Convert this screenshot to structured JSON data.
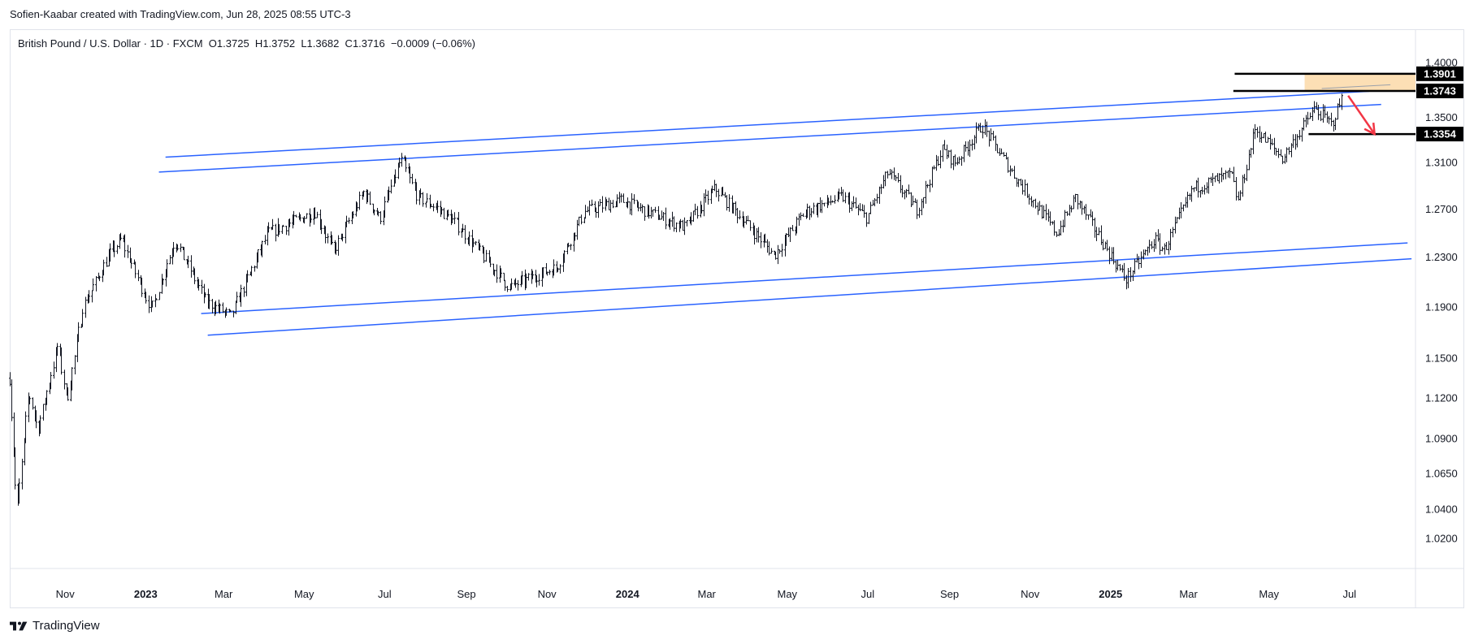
{
  "header": {
    "attribution": "Sofien-Kaabar created with TradingView.com, Jun 28, 2025 08:55 UTC-3"
  },
  "legend": {
    "symbol": "British Pound / U.S. Dollar · 1D · FXCM",
    "open_label": "O",
    "open": "1.3725",
    "high_label": "H",
    "high": "1.3752",
    "low_label": "L",
    "low": "1.3682",
    "close_label": "C",
    "close": "1.3716",
    "change": "−0.0009 (−0.06%)"
  },
  "footer": {
    "brand": "TradingView",
    "logo_icon": "tradingview-logo-icon"
  },
  "colors": {
    "candle": "#131722",
    "channel": "#2962ff",
    "arrow": "#f23645",
    "zone": "#fcd9a8",
    "price_box": "#000000",
    "grid_border": "#e0e3eb"
  },
  "chart_data": {
    "type": "candlestick",
    "title": "British Pound / U.S. Dollar · 1D · FXCM",
    "x_ticks": [
      {
        "label": "Nov",
        "date": "2022-11-01"
      },
      {
        "label": "2023",
        "date": "2023-01-01",
        "year": true
      },
      {
        "label": "Mar",
        "date": "2023-03-01"
      },
      {
        "label": "May",
        "date": "2023-05-01"
      },
      {
        "label": "Jul",
        "date": "2023-07-01"
      },
      {
        "label": "Sep",
        "date": "2023-09-01"
      },
      {
        "label": "Nov",
        "date": "2023-11-01"
      },
      {
        "label": "2024",
        "date": "2024-01-01",
        "year": true
      },
      {
        "label": "Mar",
        "date": "2024-03-01"
      },
      {
        "label": "May",
        "date": "2024-05-01"
      },
      {
        "label": "Jul",
        "date": "2024-07-01"
      },
      {
        "label": "Sep",
        "date": "2024-09-01"
      },
      {
        "label": "Nov",
        "date": "2024-11-01"
      },
      {
        "label": "2025",
        "date": "2025-01-01",
        "year": true
      },
      {
        "label": "Mar",
        "date": "2025-03-01"
      },
      {
        "label": "May",
        "date": "2025-05-01"
      },
      {
        "label": "Jul",
        "date": "2025-07-01"
      }
    ],
    "y_ticks": [
      "1.4000",
      "1.3500",
      "1.3100",
      "1.2700",
      "1.2300",
      "1.1900",
      "1.1500",
      "1.1200",
      "1.0900",
      "1.0650",
      "1.0400",
      "1.0200"
    ],
    "y_scale": "log",
    "x_range": [
      "2022-09-20",
      "2025-08-20"
    ],
    "y_range": [
      1.0,
      1.415
    ],
    "price_path": [
      [
        "2022-09-20",
        1.135
      ],
      [
        "2022-09-26",
        1.038
      ],
      [
        "2022-10-05",
        1.125
      ],
      [
        "2022-10-12",
        1.097
      ],
      [
        "2022-10-27",
        1.16
      ],
      [
        "2022-11-03",
        1.118
      ],
      [
        "2022-11-15",
        1.19
      ],
      [
        "2022-12-05",
        1.232
      ],
      [
        "2022-12-14",
        1.245
      ],
      [
        "2023-01-06",
        1.188
      ],
      [
        "2023-01-24",
        1.245
      ],
      [
        "2023-02-16",
        1.195
      ],
      [
        "2023-03-07",
        1.183
      ],
      [
        "2023-04-04",
        1.25
      ],
      [
        "2023-05-10",
        1.268
      ],
      [
        "2023-05-24",
        1.235
      ],
      [
        "2023-06-16",
        1.285
      ],
      [
        "2023-06-28",
        1.262
      ],
      [
        "2023-07-14",
        1.313
      ],
      [
        "2023-07-27",
        1.28
      ],
      [
        "2023-08-10",
        1.272
      ],
      [
        "2023-08-25",
        1.258
      ],
      [
        "2023-10-04",
        1.206
      ],
      [
        "2023-10-24",
        1.215
      ],
      [
        "2023-11-09",
        1.222
      ],
      [
        "2023-11-30",
        1.268
      ],
      [
        "2023-12-28",
        1.278
      ],
      [
        "2024-01-17",
        1.268
      ],
      [
        "2024-02-14",
        1.255
      ],
      [
        "2024-03-08",
        1.288
      ],
      [
        "2024-04-22",
        1.232
      ],
      [
        "2024-05-15",
        1.268
      ],
      [
        "2024-06-12",
        1.281
      ],
      [
        "2024-07-01",
        1.263
      ],
      [
        "2024-07-17",
        1.302
      ],
      [
        "2024-08-08",
        1.27
      ],
      [
        "2024-08-27",
        1.322
      ],
      [
        "2024-09-06",
        1.31
      ],
      [
        "2024-09-26",
        1.343
      ],
      [
        "2024-10-22",
        1.297
      ],
      [
        "2024-11-22",
        1.25
      ],
      [
        "2024-12-06",
        1.28
      ],
      [
        "2025-01-13",
        1.212
      ],
      [
        "2025-02-04",
        1.245
      ],
      [
        "2025-02-11",
        1.236
      ],
      [
        "2025-03-05",
        1.288
      ],
      [
        "2025-04-03",
        1.3
      ],
      [
        "2025-04-08",
        1.276
      ],
      [
        "2025-04-21",
        1.34
      ],
      [
        "2025-05-12",
        1.314
      ],
      [
        "2025-06-05",
        1.358
      ],
      [
        "2025-06-18",
        1.344
      ],
      [
        "2025-06-27",
        1.3716
      ]
    ],
    "channel_lines": [
      {
        "name": "upper-channel-top",
        "from": [
          "2023-01-16",
          1.315
        ],
        "to": [
          "2025-07-16",
          1.374
        ]
      },
      {
        "name": "upper-channel-bottom",
        "from": [
          "2023-01-11",
          1.302
        ],
        "to": [
          "2025-07-25",
          1.362
        ]
      },
      {
        "name": "lower-channel-top",
        "from": [
          "2023-02-12",
          1.185
        ],
        "to": [
          "2025-08-14",
          1.242
        ]
      },
      {
        "name": "lower-channel-bottom",
        "from": [
          "2023-02-17",
          1.168
        ],
        "to": [
          "2025-08-17",
          1.229
        ]
      }
    ],
    "levels": [
      {
        "value": 1.3901,
        "label": "1.3901",
        "from": "2025-04-05"
      },
      {
        "value": 1.3743,
        "label": "1.3743",
        "from": "2025-04-04"
      },
      {
        "value": 1.3354,
        "label": "1.3354",
        "from": "2025-05-31"
      }
    ],
    "resistance_zone": {
      "from": "2025-05-28",
      "to": "2025-08-20",
      "low": 1.3743,
      "high": 1.3901
    },
    "arrow": {
      "from": [
        "2025-06-30",
        1.37
      ],
      "to": [
        "2025-07-20",
        1.3354
      ]
    }
  }
}
